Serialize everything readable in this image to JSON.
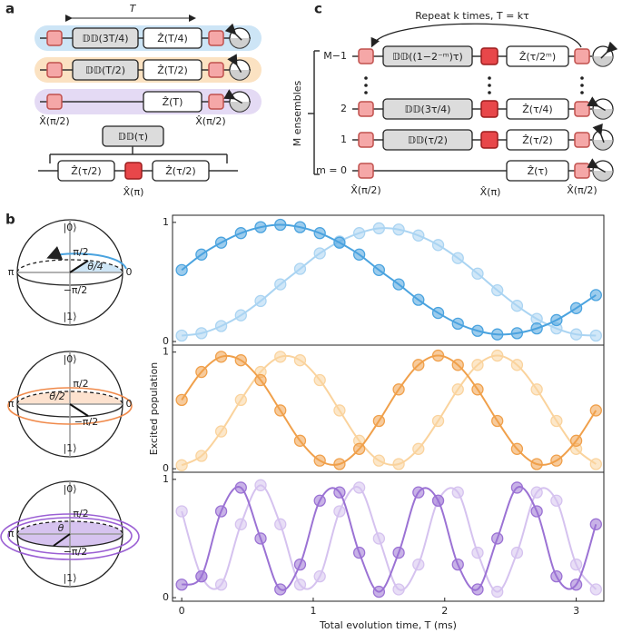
{
  "panel_a": {
    "label": "a",
    "period": "T",
    "rows": [
      {
        "dd": "𝔻𝔻(3T/4)",
        "z": "Ẑ(T/4)"
      },
      {
        "dd": "𝔻𝔻(T/2)",
        "z": "Ẑ(T/2)"
      },
      {
        "z": "Ẑ(T)"
      }
    ],
    "x_left": "X̂(π/2)",
    "x_right": "X̂(π/2)",
    "dd_tau": "𝔻𝔻(τ)",
    "z_half_left": "Ẑ(τ/2)",
    "z_half_right": "Ẑ(τ/2)",
    "x_pi": "X̂(π)"
  },
  "panel_b": {
    "label": "b",
    "spheres": [
      {
        "top": "|0⟩",
        "bottom": "|1⟩",
        "up": "π/2",
        "down": "−π/2",
        "left": "π",
        "right": "0",
        "angle": "θ/4"
      },
      {
        "top": "|0⟩",
        "bottom": "|1⟩",
        "up": "π/2",
        "down": "−π/2",
        "left": "π",
        "right": "0",
        "angle": "θ/2"
      },
      {
        "top": "|0⟩",
        "bottom": "|1⟩",
        "up": "π/2",
        "down": "−π/2",
        "left": "π",
        "angle": "θ"
      }
    ]
  },
  "panel_c": {
    "label": "c",
    "repeat": "Repeat k times, T = kτ",
    "ensembles": "M ensembles",
    "rows": [
      {
        "index": "M−1",
        "dd": "𝔻𝔻((1−2⁻ᵐ)τ)",
        "z": "Ẑ(τ/2ᵐ)"
      },
      {
        "index": "2",
        "dd": "𝔻𝔻(3τ/4)",
        "z": "Ẑ(τ/4)"
      },
      {
        "index": "1",
        "dd": "𝔻𝔻(τ/2)",
        "z": "Ẑ(τ/2)"
      },
      {
        "index": "m = 0",
        "z": "Ẑ(τ)"
      }
    ],
    "x_left": "X̂(π/2)",
    "x_mid": "X̂(π)",
    "x_right": "X̂(π/2)"
  },
  "chart_data": [
    {
      "type": "line",
      "x": [
        0,
        0.15,
        0.3,
        0.45,
        0.6,
        0.75,
        0.9,
        1.05,
        1.2,
        1.35,
        1.5,
        1.65,
        1.8,
        1.95,
        2.1,
        2.25,
        2.4,
        2.55,
        2.7,
        2.85,
        3.0,
        3.15
      ],
      "xlim": [
        -0.07,
        3.21
      ],
      "ylim": [
        -0.03,
        1.06
      ],
      "yticks": [
        0,
        1
      ],
      "series": [
        {
          "color": "#aad4f2",
          "values": [
            0.05,
            0.07,
            0.13,
            0.22,
            0.34,
            0.48,
            0.61,
            0.74,
            0.84,
            0.91,
            0.95,
            0.94,
            0.89,
            0.81,
            0.7,
            0.57,
            0.43,
            0.3,
            0.19,
            0.11,
            0.06,
            0.05
          ]
        },
        {
          "color": "#4aa3df",
          "values": [
            0.6,
            0.73,
            0.83,
            0.91,
            0.96,
            0.98,
            0.96,
            0.91,
            0.83,
            0.73,
            0.6,
            0.48,
            0.35,
            0.24,
            0.15,
            0.09,
            0.06,
            0.07,
            0.11,
            0.18,
            0.28,
            0.39
          ]
        }
      ]
    },
    {
      "type": "line",
      "x": [
        0,
        0.15,
        0.3,
        0.45,
        0.6,
        0.75,
        0.9,
        1.05,
        1.2,
        1.35,
        1.5,
        1.65,
        1.8,
        1.95,
        2.1,
        2.25,
        2.4,
        2.55,
        2.7,
        2.85,
        3.0,
        3.15
      ],
      "xlim": [
        -0.07,
        3.21
      ],
      "ylim": [
        -0.03,
        1.06
      ],
      "yticks": [
        0,
        1
      ],
      "ylabel": "Excited population",
      "series": [
        {
          "color": "#fad39d",
          "values": [
            0.03,
            0.11,
            0.32,
            0.59,
            0.83,
            0.96,
            0.93,
            0.76,
            0.5,
            0.24,
            0.07,
            0.04,
            0.17,
            0.41,
            0.68,
            0.89,
            0.97,
            0.89,
            0.68,
            0.41,
            0.17,
            0.04
          ]
        },
        {
          "color": "#f0a04b",
          "values": [
            0.59,
            0.83,
            0.96,
            0.93,
            0.76,
            0.5,
            0.24,
            0.07,
            0.04,
            0.17,
            0.41,
            0.68,
            0.89,
            0.97,
            0.89,
            0.68,
            0.41,
            0.17,
            0.04,
            0.07,
            0.24,
            0.5
          ]
        }
      ]
    },
    {
      "type": "line",
      "x": [
        0,
        0.15,
        0.3,
        0.45,
        0.6,
        0.75,
        0.9,
        1.05,
        1.2,
        1.35,
        1.5,
        1.65,
        1.8,
        1.95,
        2.1,
        2.25,
        2.4,
        2.55,
        2.7,
        2.85,
        3.0,
        3.15
      ],
      "xlim": [
        -0.07,
        3.21
      ],
      "ylim": [
        -0.03,
        1.06
      ],
      "yticks": [
        0,
        1
      ],
      "xticks": [
        0,
        1,
        2,
        3
      ],
      "xlabel": "Total evolution time, T (ms)",
      "series": [
        {
          "color": "#d5c2ef",
          "values": [
            0.73,
            0.18,
            0.11,
            0.62,
            0.95,
            0.62,
            0.11,
            0.18,
            0.73,
            0.93,
            0.5,
            0.07,
            0.28,
            0.82,
            0.89,
            0.38,
            0.05,
            0.38,
            0.89,
            0.82,
            0.28,
            0.07
          ]
        },
        {
          "color": "#9b72d4",
          "values": [
            0.11,
            0.18,
            0.73,
            0.93,
            0.5,
            0.07,
            0.28,
            0.82,
            0.89,
            0.38,
            0.05,
            0.38,
            0.89,
            0.82,
            0.28,
            0.07,
            0.5,
            0.93,
            0.73,
            0.18,
            0.11,
            0.62
          ]
        }
      ]
    }
  ]
}
